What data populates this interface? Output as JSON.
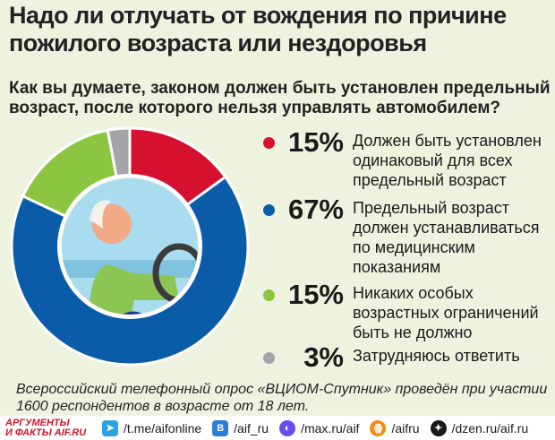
{
  "title": "Надо ли отлучать от вождения по причине пожилого возраста или нездоровья",
  "subtitle": "Как вы думаете, законом должен быть установлен предельный возраст, после которого нельзя управлять автомобилем?",
  "chart_data": {
    "type": "pie",
    "donut": true,
    "start": "top, clockwise",
    "slices": [
      {
        "label": "Должен быть установлен одинаковый для всех предельный возраст",
        "value": 15,
        "pct_label": "15%",
        "color": "#d6112f"
      },
      {
        "label": "Предельный возраст должен устанавливаться по медицинским показаниям",
        "value": 67,
        "pct_label": "67%",
        "color": "#0b5ca8"
      },
      {
        "label": "Никаких особых возрастных ограничений быть не должно",
        "value": 15,
        "pct_label": "15%",
        "color": "#8cc540"
      },
      {
        "label": "Затрудняюсь ответить",
        "value": 3,
        "pct_label": "3%",
        "color": "#a3a5a8"
      }
    ]
  },
  "note": "Всероссийский телефонный опрос «ВЦИОМ-Спутник» проведён при участии 1600 респондентов  в возрасте от 18 лет.",
  "footer": {
    "logo": "АРГУМЕНТЫ И ФАКТЫ AIF.RU",
    "links": [
      {
        "icon": "telegram-icon",
        "text": "/t.me/aifonline",
        "color": "#2aa3dc",
        "glyph": "➤"
      },
      {
        "icon": "vk-icon",
        "text": "/aif_ru",
        "color": "#2f7cd6",
        "glyph": "В"
      },
      {
        "icon": "max-icon",
        "text": "/max.ru/aif",
        "color": "#6a4cf0",
        "glyph": "◐"
      },
      {
        "icon": "odnoklassniki-icon",
        "text": "/aifru",
        "color": "#f28a1b",
        "glyph": "ꙮ"
      },
      {
        "icon": "dzen-icon",
        "text": "/dzen.ru/aif.ru",
        "color": "#1a1a1a",
        "glyph": "✦"
      }
    ]
  }
}
